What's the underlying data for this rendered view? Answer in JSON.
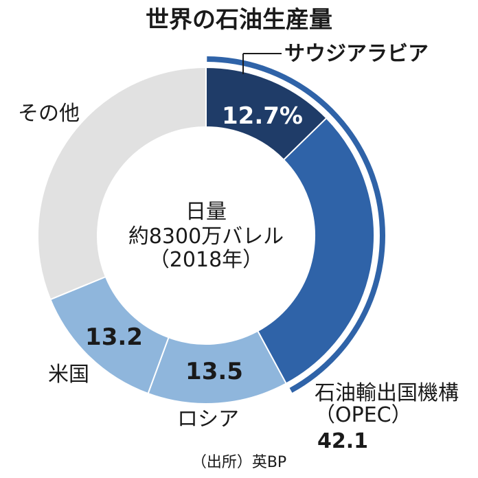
{
  "chart_data": {
    "type": "pie",
    "title": "世界の石油生産量",
    "center_text": [
      "日量",
      "約8300万バレル",
      "（2018年）"
    ],
    "unit": "%",
    "slices": [
      {
        "name": "サウジアラビア",
        "value": 12.7,
        "label": "12.7%",
        "color": "#1f3c68",
        "group": "opec"
      },
      {
        "name": "石油輸出国機構（OPEC）",
        "value": 29.4,
        "label": "",
        "color": "#2f63a8",
        "group": "opec"
      },
      {
        "name": "ロシア",
        "value": 13.5,
        "label": "13.5",
        "color": "#8fb6dc"
      },
      {
        "name": "米国",
        "value": 13.2,
        "label": "13.2",
        "color": "#8fb6dc"
      },
      {
        "name": "その他",
        "value": 31.2,
        "label": "",
        "color": "#e1e1e1"
      }
    ],
    "opec_group": {
      "label_line1": "石油輸出国機構",
      "label_line2": "（OPEC）",
      "total": "42.1",
      "color": "#2f63a8"
    },
    "category_labels": {
      "saudi": "サウジアラビア",
      "russia": "ロシア",
      "usa": "米国",
      "other": "その他"
    },
    "source": "（出所）英BP"
  }
}
